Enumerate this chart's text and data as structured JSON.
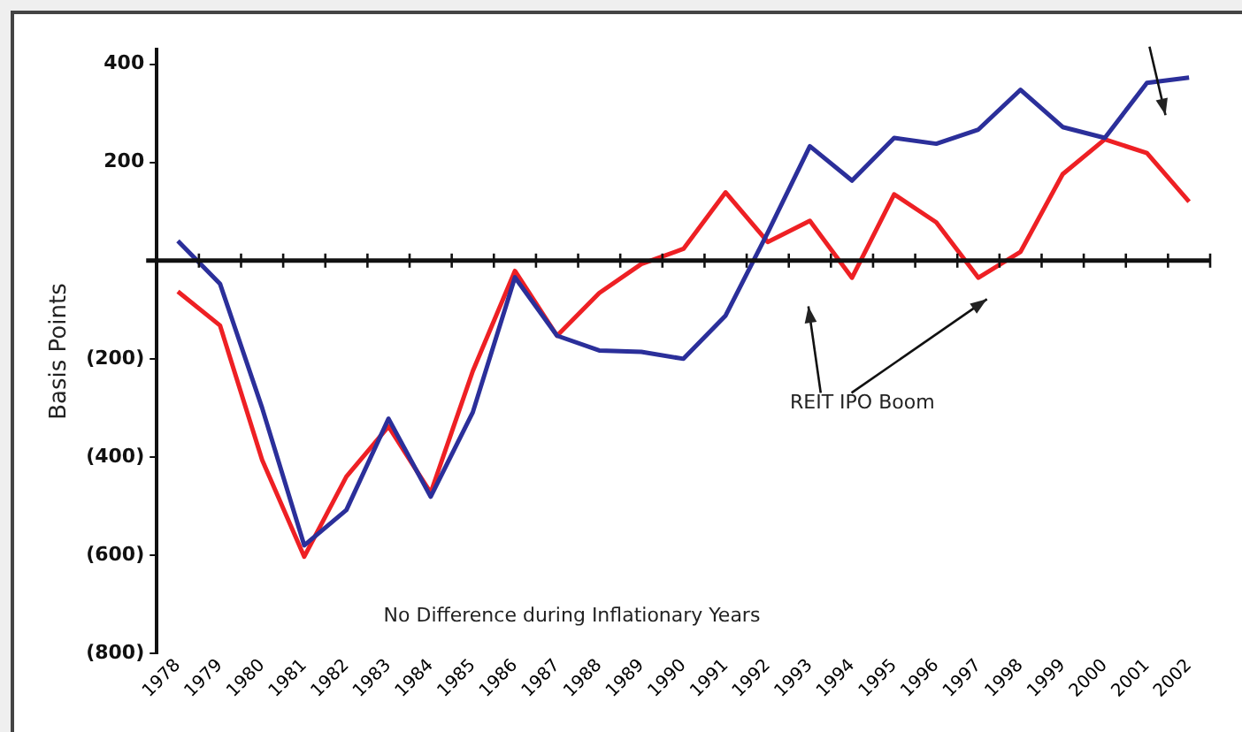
{
  "chart_data": {
    "type": "line",
    "ylabel": "Basis Points",
    "categories": [
      "1978",
      "1979",
      "1980",
      "1981",
      "1982",
      "1983",
      "1984",
      "1985",
      "1986",
      "1987",
      "1988",
      "1989",
      "1990",
      "1991",
      "1992",
      "1993",
      "1994",
      "1995",
      "1996",
      "1997",
      "1998",
      "1999",
      "2000",
      "2001",
      "2002"
    ],
    "series": [
      {
        "color": "#2b2f9a",
        "values": [
          40,
          -47,
          -300,
          -580,
          -508,
          -322,
          -481,
          -309,
          -34,
          -153,
          -183,
          -186,
          -200,
          -112,
          57,
          233,
          163,
          250,
          238,
          267,
          348,
          272,
          250,
          362,
          373
        ]
      },
      {
        "color": "#ee2024",
        "values": [
          -63,
          -132,
          -406,
          -603,
          -440,
          -338,
          -473,
          -225,
          -21,
          -153,
          -66,
          -7,
          24,
          139,
          38,
          81,
          -35,
          135,
          78,
          -35,
          18,
          176,
          247,
          219,
          120
        ]
      }
    ],
    "ylim": [
      -800,
      430
    ],
    "yticks": [
      400,
      200,
      {
        "value": -200,
        "label": "(200)"
      },
      {
        "value": -400,
        "label": "(400)"
      },
      {
        "value": -600,
        "label": "(600)"
      },
      {
        "value": -800,
        "label": "(800)"
      }
    ],
    "ref_lines": [
      {
        "axis": "y",
        "value": 0
      }
    ],
    "grid": false,
    "legend": false,
    "marker": "none",
    "line_style": "solid",
    "annotations": [
      "No Difference during Inflationary Years",
      "REIT IPO Boom"
    ]
  }
}
